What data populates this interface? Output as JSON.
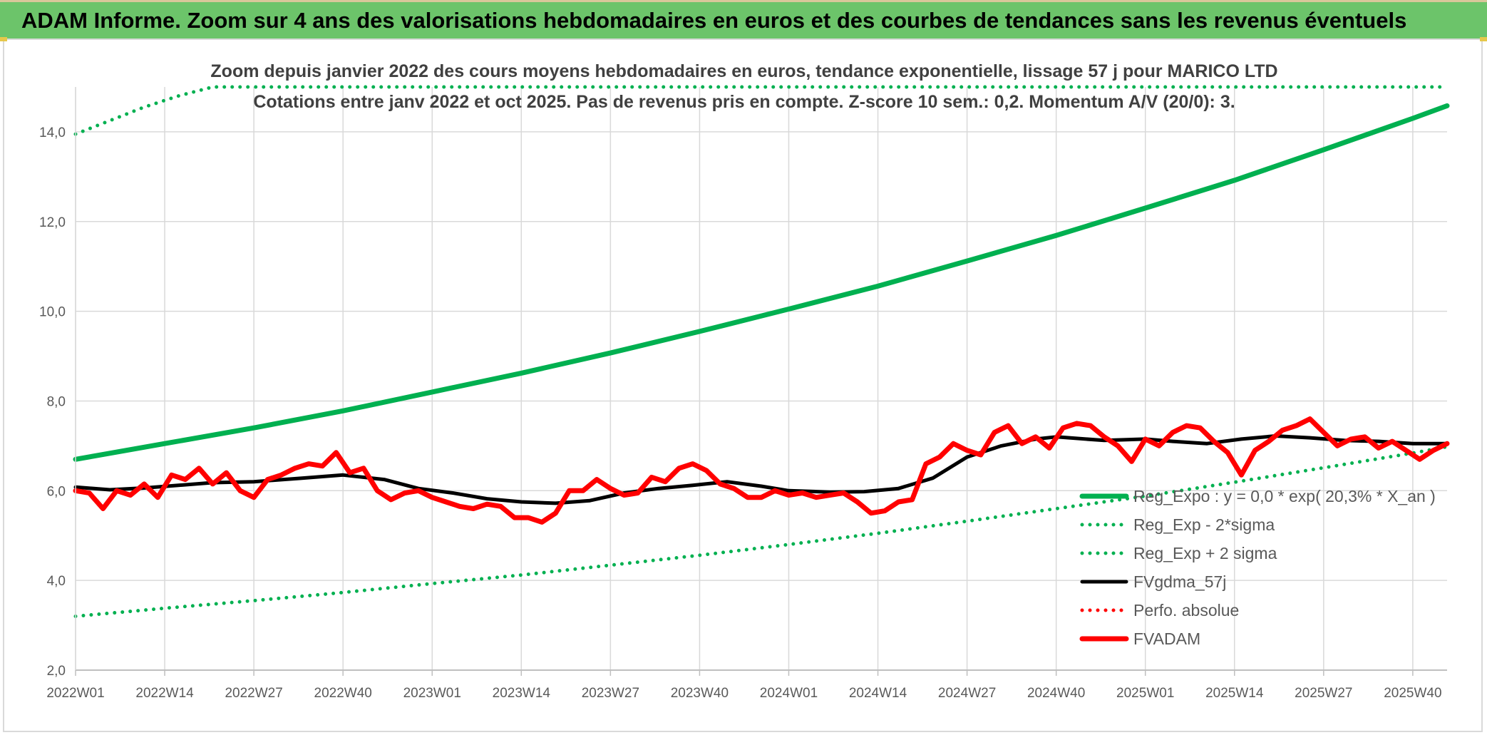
{
  "header": {
    "title": "ADAM Informe. Zoom sur 4 ans des valorisations hebdomadaires en euros et des courbes de tendances sans les revenus éventuels"
  },
  "colors": {
    "banner": "#6cc46a",
    "reg_expo": "#00b050",
    "sigma": "#00b050",
    "fvgdma": "#000000",
    "perfo": "#ff0000",
    "fvadam": "#ff0000",
    "grid": "#d9d9d9",
    "axis_text": "#595959"
  },
  "chart_data": {
    "type": "line",
    "title": "Zoom depuis janvier 2022 des cours moyens hebdomadaires en euros, tendance exponentielle, lissage 57 j pour MARICO LTD",
    "subtitle": "Cotations entre janv 2022 et oct 2025. Pas de revenus pris en compte. Z-score 10 sem.: 0,2. Momentum A/V (20/0): 3.",
    "xlabel": "",
    "ylabel": "",
    "ylim": [
      2,
      15
    ],
    "yticks": [
      "2,0",
      "4,0",
      "6,0",
      "8,0",
      "10,0",
      "12,0",
      "14,0"
    ],
    "ytick_values": [
      2,
      4,
      6,
      8,
      10,
      12,
      14
    ],
    "xticks": [
      "2022W01",
      "2022W14",
      "2022W27",
      "2022W40",
      "2023W01",
      "2023W14",
      "2023W27",
      "2023W40",
      "2024W01",
      "2024W14",
      "2024W27",
      "2024W40",
      "2025W01",
      "2025W14",
      "2025W27",
      "2025W40"
    ],
    "xtick_week_index": [
      0,
      13,
      26,
      39,
      52,
      65,
      78,
      91,
      104,
      117,
      130,
      143,
      156,
      169,
      182,
      195
    ],
    "n_weeks": 201,
    "grid": true,
    "legend_position": "right",
    "series": [
      {
        "name": "Reg_Expo : y = 0,0 * exp( 20,3% *  X_an )",
        "style": "solid-thick",
        "color": "#00b050",
        "x": [
          0,
          13,
          26,
          39,
          52,
          65,
          78,
          91,
          104,
          117,
          130,
          143,
          156,
          169,
          182,
          195,
          200
        ],
        "values": [
          6.7,
          7.05,
          7.4,
          7.78,
          8.2,
          8.62,
          9.07,
          9.55,
          10.05,
          10.56,
          11.12,
          11.69,
          12.3,
          12.92,
          13.6,
          14.3,
          14.58
        ]
      },
      {
        "name": "Reg_Exp - 2*sigma",
        "style": "dotted",
        "color": "#00b050",
        "x": [
          0,
          13,
          26,
          39,
          52,
          65,
          78,
          91,
          104,
          117,
          130,
          143,
          156,
          169,
          182,
          195,
          200
        ],
        "values": [
          3.2,
          3.38,
          3.55,
          3.73,
          3.93,
          4.12,
          4.34,
          4.56,
          4.8,
          5.05,
          5.32,
          5.6,
          5.88,
          6.19,
          6.51,
          6.84,
          6.98
        ]
      },
      {
        "name": "Reg_Exp + 2 sigma",
        "style": "dotted",
        "color": "#00b050",
        "x": [
          0,
          5,
          10,
          15,
          20,
          26,
          170,
          175,
          180,
          185,
          190,
          195,
          200
        ],
        "values": [
          13.95,
          14.25,
          14.55,
          14.8,
          15.0,
          15.0,
          15.0,
          15.0,
          15.0,
          15.0,
          15.0,
          15.0,
          15.0
        ]
      },
      {
        "name": "FVgdma_57j",
        "style": "solid-medium",
        "color": "#000000",
        "x": [
          0,
          5,
          10,
          15,
          20,
          26,
          33,
          39,
          45,
          50,
          55,
          60,
          65,
          70,
          75,
          80,
          85,
          90,
          95,
          100,
          104,
          110,
          115,
          120,
          125,
          130,
          135,
          140,
          143,
          150,
          156,
          160,
          165,
          170,
          175,
          180,
          185,
          190,
          195,
          200
        ],
        "values": [
          6.08,
          6.02,
          6.06,
          6.12,
          6.18,
          6.2,
          6.28,
          6.35,
          6.25,
          6.05,
          5.95,
          5.82,
          5.75,
          5.72,
          5.78,
          5.95,
          6.05,
          6.12,
          6.2,
          6.1,
          6.0,
          5.97,
          5.98,
          6.05,
          6.28,
          6.75,
          7.0,
          7.15,
          7.2,
          7.12,
          7.15,
          7.1,
          7.05,
          7.15,
          7.22,
          7.18,
          7.12,
          7.1,
          7.05,
          7.05
        ]
      },
      {
        "name": "Perfo. absolue",
        "style": "dotted",
        "color": "#ff0000",
        "x": [],
        "values": []
      },
      {
        "name": "FVADAM",
        "style": "solid-thick",
        "color": "#ff0000",
        "x": [
          0,
          2,
          4,
          6,
          8,
          10,
          12,
          14,
          16,
          18,
          20,
          22,
          24,
          26,
          28,
          30,
          32,
          34,
          36,
          38,
          40,
          42,
          44,
          46,
          48,
          50,
          52,
          54,
          56,
          58,
          60,
          62,
          64,
          66,
          68,
          70,
          72,
          74,
          76,
          78,
          80,
          82,
          84,
          86,
          88,
          90,
          92,
          94,
          96,
          98,
          100,
          102,
          104,
          106,
          108,
          110,
          112,
          114,
          116,
          118,
          120,
          122,
          124,
          126,
          128,
          130,
          132,
          134,
          136,
          138,
          140,
          142,
          144,
          146,
          148,
          150,
          152,
          154,
          156,
          158,
          160,
          162,
          164,
          166,
          168,
          170,
          172,
          174,
          176,
          178,
          180,
          182,
          184,
          186,
          188,
          190,
          192,
          194,
          196,
          198,
          200
        ],
        "values": [
          6.0,
          5.95,
          5.6,
          6.0,
          5.9,
          6.15,
          5.85,
          6.35,
          6.25,
          6.5,
          6.15,
          6.4,
          6.0,
          5.85,
          6.25,
          6.35,
          6.5,
          6.6,
          6.55,
          6.85,
          6.4,
          6.5,
          6.0,
          5.8,
          5.95,
          6.0,
          5.85,
          5.75,
          5.65,
          5.6,
          5.7,
          5.65,
          5.4,
          5.4,
          5.3,
          5.5,
          6.0,
          6.0,
          6.25,
          6.05,
          5.9,
          5.95,
          6.3,
          6.2,
          6.5,
          6.6,
          6.45,
          6.15,
          6.05,
          5.85,
          5.85,
          6.0,
          5.9,
          5.95,
          5.85,
          5.9,
          5.95,
          5.75,
          5.5,
          5.55,
          5.75,
          5.8,
          6.6,
          6.75,
          7.05,
          6.9,
          6.8,
          7.3,
          7.45,
          7.05,
          7.2,
          6.95,
          7.4,
          7.5,
          7.45,
          7.2,
          7.0,
          6.65,
          7.15,
          7.0,
          7.3,
          7.45,
          7.4,
          7.1,
          6.85,
          6.35,
          6.9,
          7.1,
          7.35,
          7.45,
          7.6,
          7.3,
          7.0,
          7.15,
          7.2,
          6.95,
          7.1,
          6.9,
          6.7,
          6.9,
          7.05
        ]
      }
    ]
  }
}
